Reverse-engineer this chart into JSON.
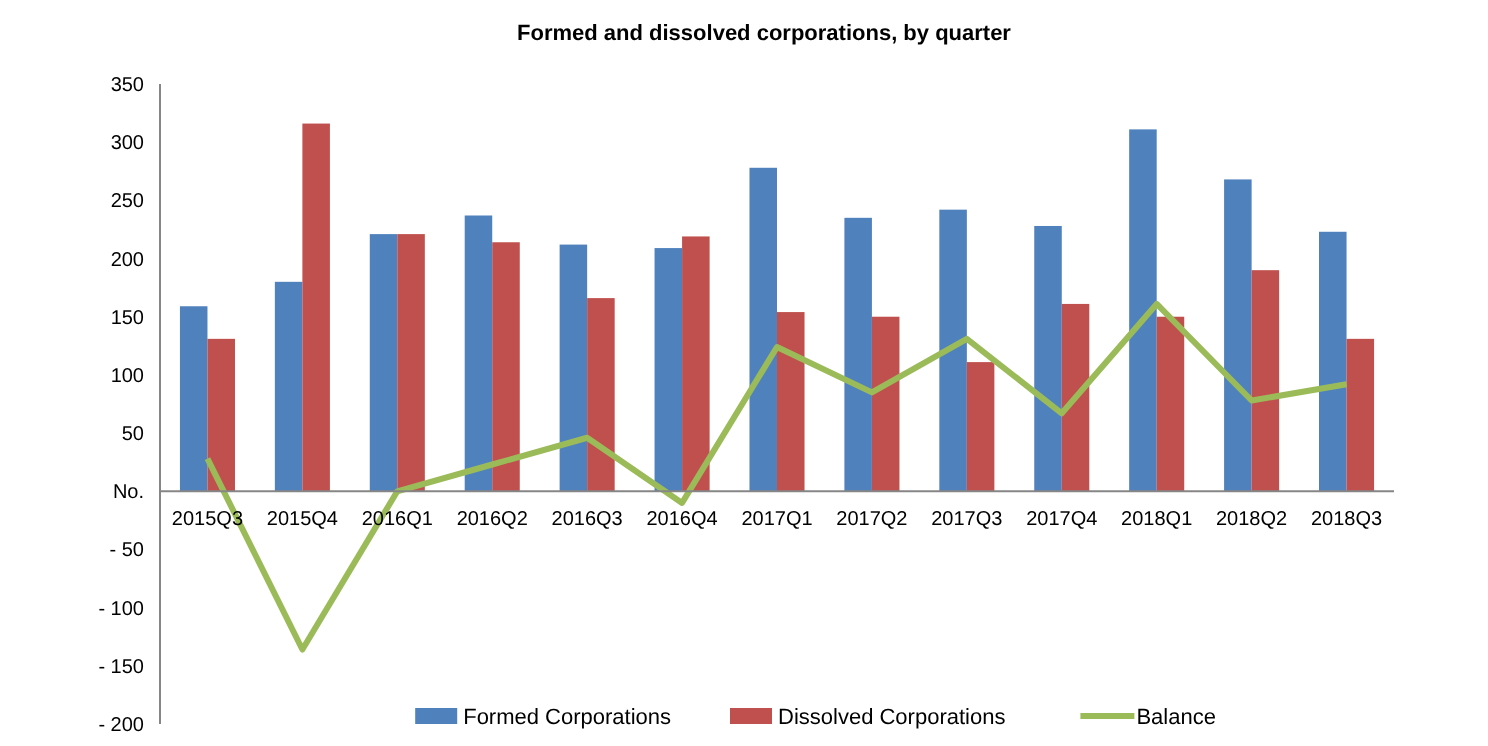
{
  "chart_data": {
    "type": "bar",
    "title": "Formed and dissolved  corporations,  by quarter",
    "categories": [
      "2015Q3",
      "2015Q4",
      "2016Q1",
      "2016Q2",
      "2016Q3",
      "2016Q4",
      "2017Q1",
      "2017Q2",
      "2017Q3",
      "2017Q4",
      "2018Q1",
      "2018Q2",
      "2018Q3"
    ],
    "series": [
      {
        "name": "Formed Corporations",
        "color": "#4f81bd",
        "values": [
          159,
          180,
          221,
          237,
          212,
          209,
          278,
          235,
          242,
          228,
          311,
          268,
          223
        ]
      },
      {
        "name": "Dissolved Corporations",
        "color": "#c0504d",
        "values": [
          131,
          316,
          221,
          214,
          166,
          219,
          154,
          150,
          111,
          161,
          150,
          190,
          131
        ]
      },
      {
        "name": "Balance",
        "type": "line",
        "color": "#9bbb59",
        "values": [
          28,
          -136,
          0,
          23,
          46,
          -10,
          124,
          85,
          131,
          67,
          161,
          78,
          92
        ]
      }
    ],
    "ylim": [
      -200,
      350
    ],
    "yticks": [
      {
        "value": -200,
        "label": "- 200"
      },
      {
        "value": -150,
        "label": "- 150"
      },
      {
        "value": -100,
        "label": "- 100"
      },
      {
        "value": -50,
        "label": "- 50"
      },
      {
        "value": 0,
        "label": "No."
      },
      50,
      100,
      150,
      200,
      250,
      300,
      350
    ],
    "grid": false,
    "legend": "bottom",
    "marker": "none"
  }
}
